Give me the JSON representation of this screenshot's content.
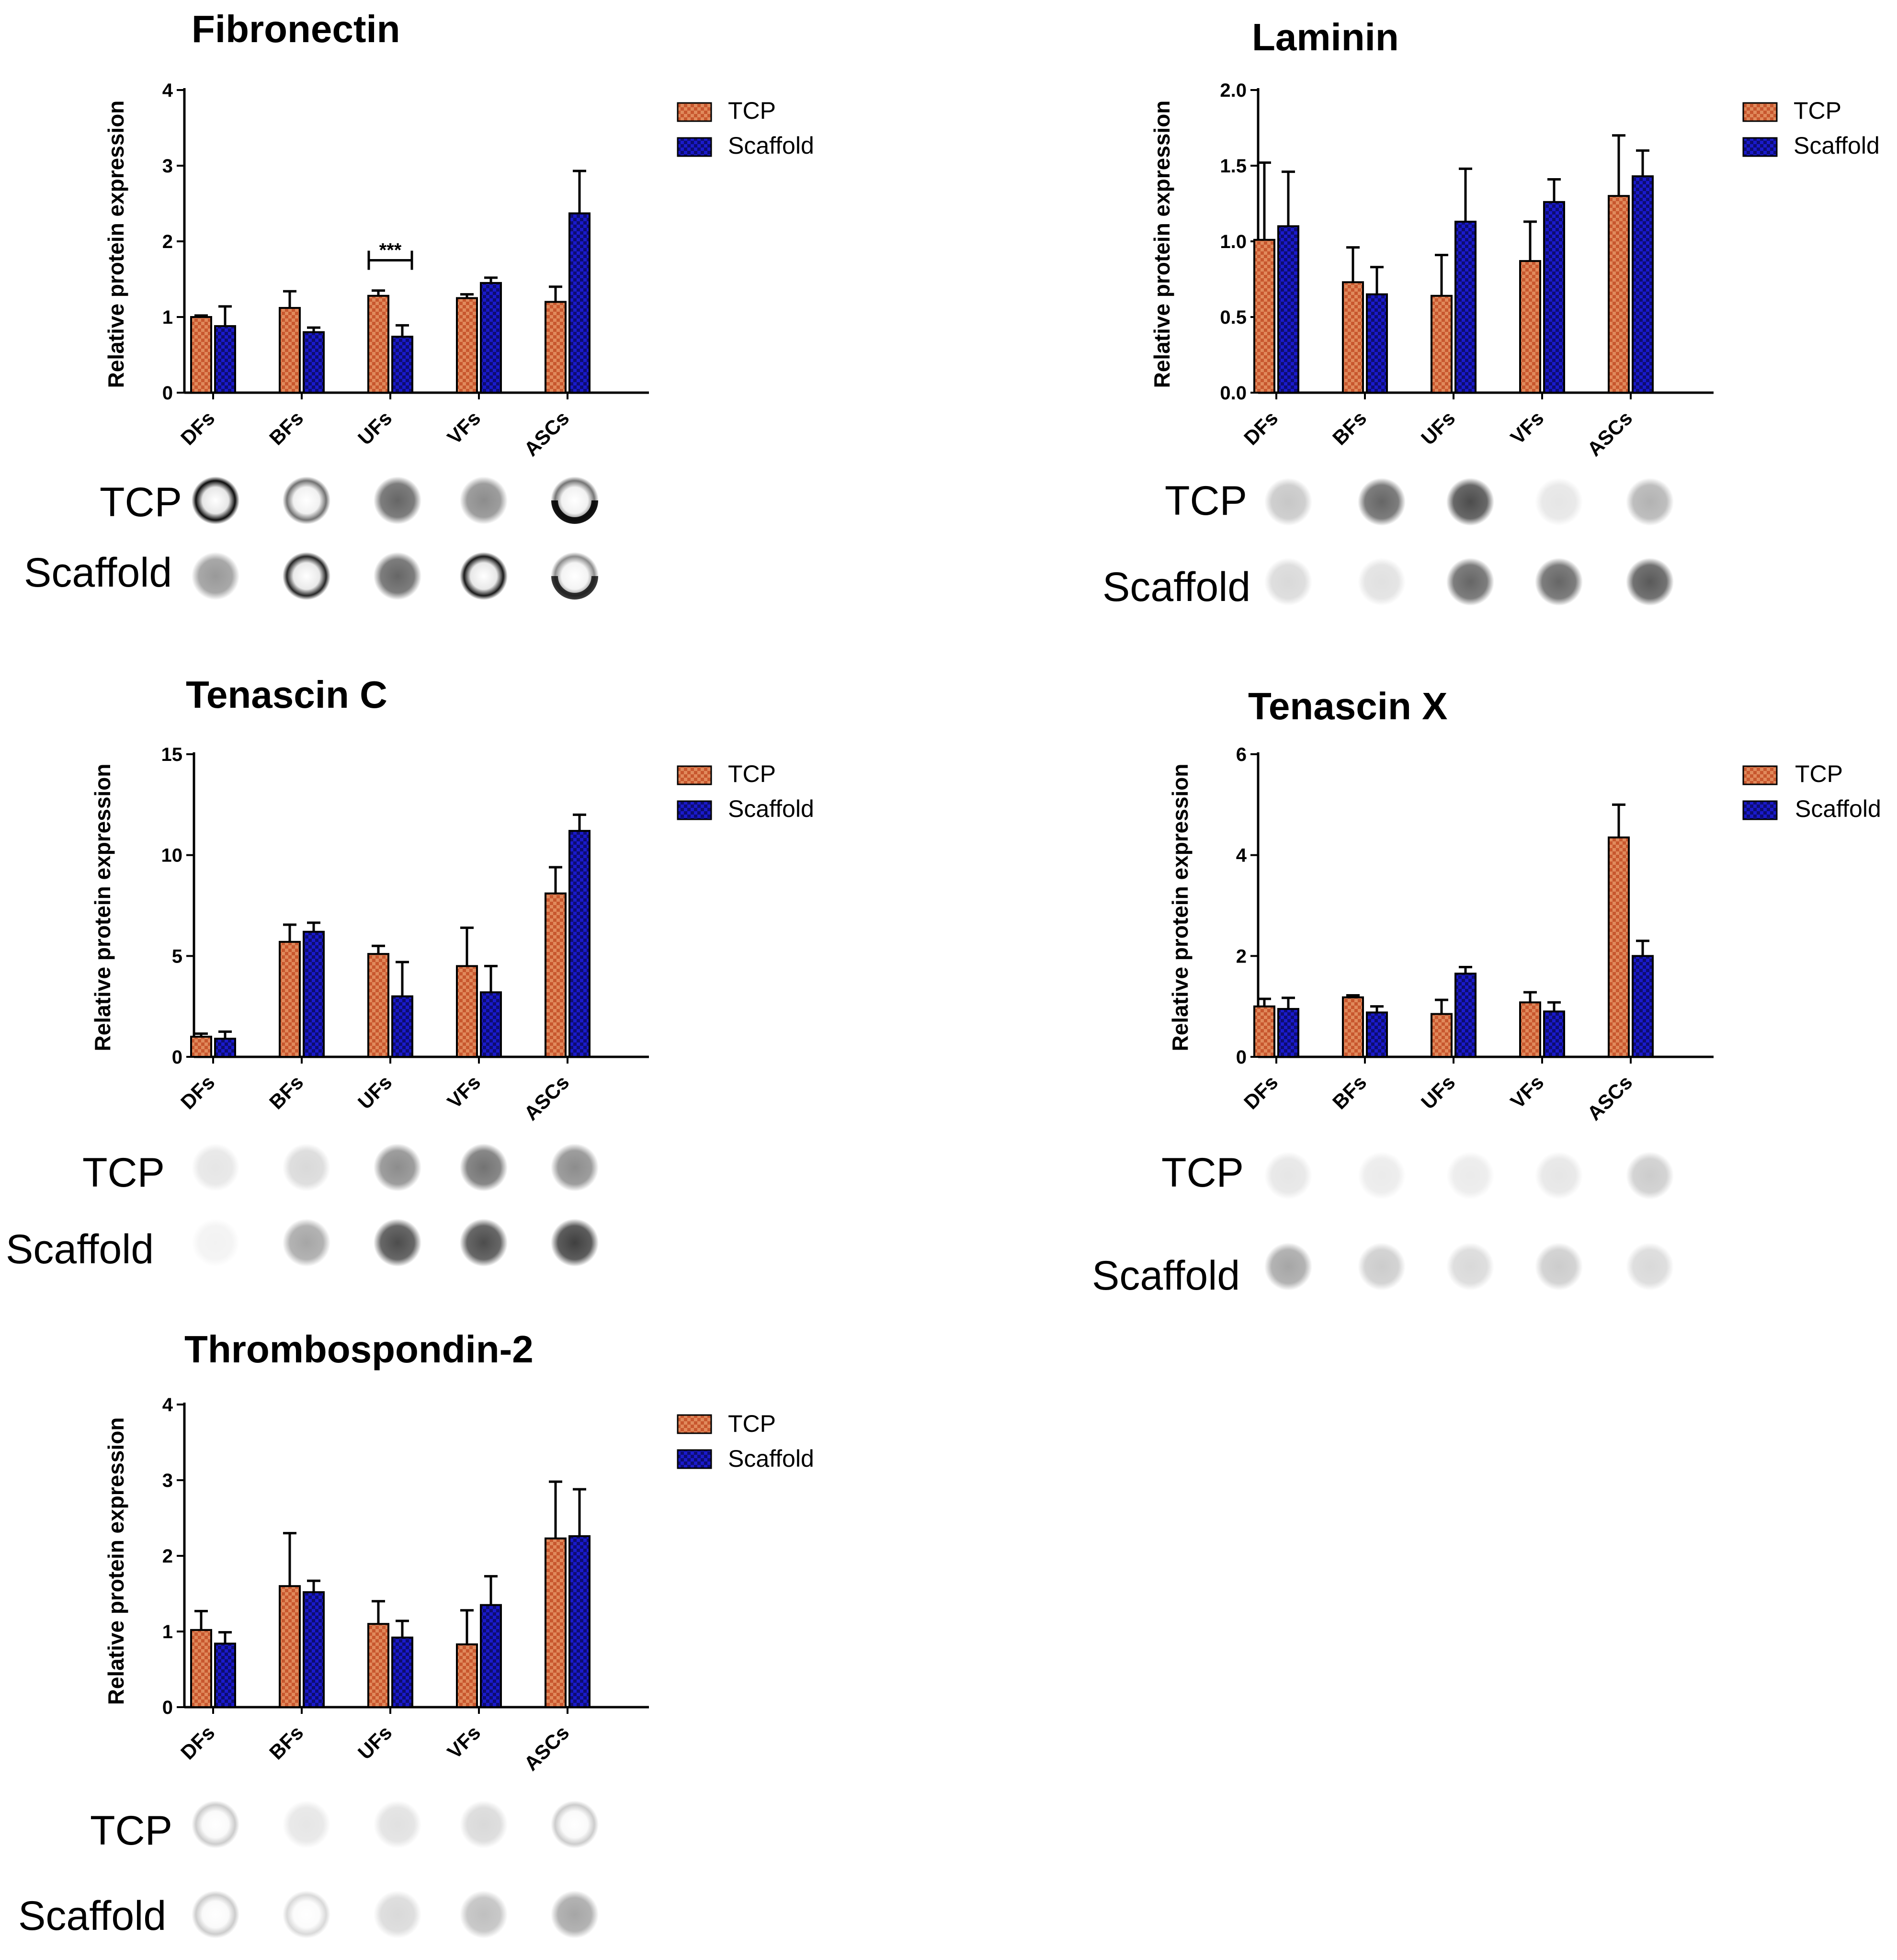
{
  "figure": {
    "ylabel": "Relative protein expression",
    "blot_row_labels": [
      "TCP",
      "Scaffold"
    ]
  },
  "colors": {
    "tcp": "#c8572e",
    "scaffold": "#1a1acc",
    "axis": "#000000"
  },
  "chart_data": [
    {
      "id": "fibronectin",
      "type": "bar",
      "title": "Fibronectin",
      "ylabel": "Relative protein expression",
      "categories": [
        "DFs",
        "BFs",
        "UFs",
        "VFs",
        "ASCs"
      ],
      "ylim": [
        0,
        4
      ],
      "yticks": [
        "0",
        "1",
        "2",
        "3",
        "4"
      ],
      "ytick_values": [
        0,
        1,
        2,
        3,
        4
      ],
      "series": [
        {
          "name": "TCP",
          "values": [
            1.0,
            1.12,
            1.28,
            1.25,
            1.2
          ],
          "errors": [
            0.02,
            0.22,
            0.07,
            0.05,
            0.2
          ]
        },
        {
          "name": "Scaffold",
          "values": [
            0.88,
            0.8,
            0.74,
            1.45,
            2.37
          ],
          "errors": [
            0.26,
            0.06,
            0.15,
            0.07,
            0.56
          ]
        }
      ],
      "annotations": [
        {
          "text": "***",
          "category_index": 2,
          "y": 1.75
        }
      ],
      "legend": [
        "TCP",
        "Scaffold"
      ]
    },
    {
      "id": "laminin",
      "type": "bar",
      "title": "Laminin",
      "ylabel": "Relative protein expression",
      "categories": [
        "DFs",
        "BFs",
        "UFs",
        "VFs",
        "ASCs"
      ],
      "ylim": [
        0,
        2.0
      ],
      "yticks": [
        "0.0",
        "0.5",
        "1.0",
        "1.5",
        "2.0"
      ],
      "ytick_values": [
        0,
        0.5,
        1.0,
        1.5,
        2.0
      ],
      "series": [
        {
          "name": "TCP",
          "values": [
            1.01,
            0.73,
            0.64,
            0.87,
            1.3
          ],
          "errors": [
            0.51,
            0.23,
            0.27,
            0.26,
            0.4
          ]
        },
        {
          "name": "Scaffold",
          "values": [
            1.1,
            0.65,
            1.13,
            1.26,
            1.43
          ],
          "errors": [
            0.36,
            0.18,
            0.35,
            0.15,
            0.17
          ]
        }
      ],
      "annotations": [],
      "legend": [
        "TCP",
        "Scaffold"
      ]
    },
    {
      "id": "tenascin-c",
      "type": "bar",
      "title": "Tenascin C",
      "ylabel": "Relative protein expression",
      "categories": [
        "DFs",
        "BFs",
        "UFs",
        "VFs",
        "ASCs"
      ],
      "ylim": [
        0,
        15
      ],
      "yticks": [
        "0",
        "5",
        "10",
        "15"
      ],
      "ytick_values": [
        0,
        5,
        10,
        15
      ],
      "series": [
        {
          "name": "TCP",
          "values": [
            1.0,
            5.7,
            5.1,
            4.5,
            8.1
          ],
          "errors": [
            0.15,
            0.85,
            0.4,
            1.9,
            1.3
          ]
        },
        {
          "name": "Scaffold",
          "values": [
            0.9,
            6.2,
            3.0,
            3.2,
            11.2
          ],
          "errors": [
            0.35,
            0.45,
            1.7,
            1.3,
            0.8
          ]
        }
      ],
      "annotations": [],
      "legend": [
        "TCP",
        "Scaffold"
      ]
    },
    {
      "id": "tenascin-x",
      "type": "bar",
      "title": "Tenascin X",
      "ylabel": "Relative protein expression",
      "categories": [
        "DFs",
        "BFs",
        "UFs",
        "VFs",
        "ASCs"
      ],
      "ylim": [
        0,
        6
      ],
      "yticks": [
        "0",
        "2",
        "4",
        "6"
      ],
      "ytick_values": [
        0,
        2,
        4,
        6
      ],
      "series": [
        {
          "name": "TCP",
          "values": [
            1.0,
            1.18,
            0.85,
            1.08,
            4.35
          ],
          "errors": [
            0.15,
            0.04,
            0.28,
            0.2,
            0.65
          ]
        },
        {
          "name": "Scaffold",
          "values": [
            0.95,
            0.88,
            1.65,
            0.9,
            2.0
          ],
          "errors": [
            0.22,
            0.12,
            0.13,
            0.18,
            0.3
          ]
        }
      ],
      "annotations": [],
      "legend": [
        "TCP",
        "Scaffold"
      ]
    },
    {
      "id": "thrombospondin-2",
      "type": "bar",
      "title": "Thrombospondin-2",
      "ylabel": "Relative protein expression",
      "categories": [
        "DFs",
        "BFs",
        "UFs",
        "VFs",
        "ASCs"
      ],
      "ylim": [
        0,
        4
      ],
      "yticks": [
        "0",
        "1",
        "2",
        "3",
        "4"
      ],
      "ytick_values": [
        0,
        1,
        2,
        3,
        4
      ],
      "series": [
        {
          "name": "TCP",
          "values": [
            1.02,
            1.6,
            1.1,
            0.83,
            2.23
          ],
          "errors": [
            0.25,
            0.7,
            0.3,
            0.45,
            0.75
          ]
        },
        {
          "name": "Scaffold",
          "values": [
            0.84,
            1.52,
            0.92,
            1.35,
            2.26
          ],
          "errors": [
            0.15,
            0.15,
            0.22,
            0.38,
            0.62
          ]
        }
      ],
      "annotations": [],
      "legend": [
        "TCP",
        "Scaffold"
      ]
    }
  ],
  "blots": [
    {
      "chart_id": "fibronectin",
      "tcp": [
        {
          "type": "ring",
          "intensity": 0.95
        },
        {
          "type": "ring",
          "intensity": 0.55
        },
        {
          "type": "disc",
          "intensity": 0.6
        },
        {
          "type": "disc",
          "intensity": 0.45
        },
        {
          "type": "crescent",
          "intensity": 0.9
        }
      ],
      "scaffold": [
        {
          "type": "disc",
          "intensity": 0.4
        },
        {
          "type": "ring",
          "intensity": 0.85
        },
        {
          "type": "disc",
          "intensity": 0.6
        },
        {
          "type": "ring",
          "intensity": 0.9
        },
        {
          "type": "crescent",
          "intensity": 0.75
        }
      ]
    },
    {
      "chart_id": "laminin",
      "tcp": [
        {
          "type": "disc",
          "intensity": 0.22
        },
        {
          "type": "disc",
          "intensity": 0.6
        },
        {
          "type": "disc",
          "intensity": 0.7
        },
        {
          "type": "disc",
          "intensity": 0.1
        },
        {
          "type": "disc",
          "intensity": 0.3
        }
      ],
      "scaffold": [
        {
          "type": "disc",
          "intensity": 0.15
        },
        {
          "type": "disc",
          "intensity": 0.12
        },
        {
          "type": "disc",
          "intensity": 0.6
        },
        {
          "type": "disc",
          "intensity": 0.6
        },
        {
          "type": "disc",
          "intensity": 0.65
        }
      ]
    },
    {
      "chart_id": "tenascin-c",
      "tcp": [
        {
          "type": "disc",
          "intensity": 0.1
        },
        {
          "type": "disc",
          "intensity": 0.15
        },
        {
          "type": "disc",
          "intensity": 0.45
        },
        {
          "type": "disc",
          "intensity": 0.55
        },
        {
          "type": "disc",
          "intensity": 0.45
        }
      ],
      "scaffold": [
        {
          "type": "disc",
          "intensity": 0.05
        },
        {
          "type": "disc",
          "intensity": 0.35
        },
        {
          "type": "disc",
          "intensity": 0.7
        },
        {
          "type": "disc",
          "intensity": 0.7
        },
        {
          "type": "disc",
          "intensity": 0.75
        }
      ]
    },
    {
      "chart_id": "tenascin-x",
      "tcp": [
        {
          "type": "disc",
          "intensity": 0.1
        },
        {
          "type": "disc",
          "intensity": 0.08
        },
        {
          "type": "disc",
          "intensity": 0.08
        },
        {
          "type": "disc",
          "intensity": 0.1
        },
        {
          "type": "disc",
          "intensity": 0.2
        }
      ],
      "scaffold": [
        {
          "type": "disc",
          "intensity": 0.35
        },
        {
          "type": "disc",
          "intensity": 0.2
        },
        {
          "type": "disc",
          "intensity": 0.15
        },
        {
          "type": "disc",
          "intensity": 0.2
        },
        {
          "type": "disc",
          "intensity": 0.15
        }
      ]
    },
    {
      "chart_id": "thrombospondin-2",
      "tcp": [
        {
          "type": "ring",
          "intensity": 0.2
        },
        {
          "type": "disc",
          "intensity": 0.1
        },
        {
          "type": "disc",
          "intensity": 0.12
        },
        {
          "type": "disc",
          "intensity": 0.15
        },
        {
          "type": "ring",
          "intensity": 0.2
        }
      ],
      "scaffold": [
        {
          "type": "ring",
          "intensity": 0.2
        },
        {
          "type": "ring",
          "intensity": 0.15
        },
        {
          "type": "disc",
          "intensity": 0.15
        },
        {
          "type": "disc",
          "intensity": 0.25
        },
        {
          "type": "disc",
          "intensity": 0.35
        }
      ]
    }
  ]
}
